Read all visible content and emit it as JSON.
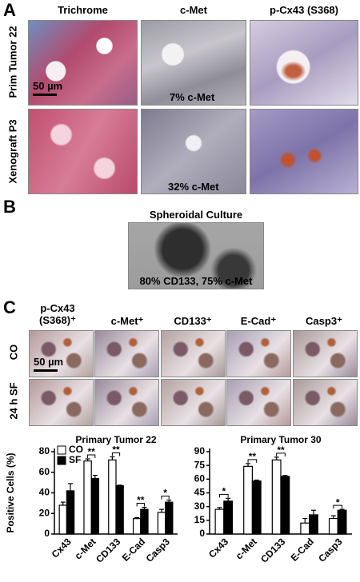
{
  "panels": {
    "A": {
      "label": "A",
      "columns": [
        "Trichrome",
        "c-Met",
        "p-Cx43 (S368)"
      ],
      "rows": [
        "Prim Tumor 22",
        "Xenograft P3"
      ],
      "scale_bar": "50 µm",
      "annotations": [
        "7% c-Met",
        "32% c-Met"
      ]
    },
    "B": {
      "label": "B",
      "title": "Spheroidal Culture",
      "annotation": "80% CD133, 75% c-Met"
    },
    "C": {
      "label": "C",
      "columns": [
        "p-Cx43 (S368)⁺",
        "c-Met⁺",
        "CD133⁺",
        "E-Cad⁺",
        "Casp3⁺"
      ],
      "rows": [
        "CO",
        "24 h SF"
      ],
      "scale_bar": "50 µm"
    }
  },
  "chart_data": [
    {
      "type": "bar",
      "title": "Primary Tumor  22",
      "ylabel": "Positive Cells (%)",
      "categories": [
        "Cx43",
        "c-Met",
        "CD133",
        "E-Cad",
        "Casp3"
      ],
      "series": [
        {
          "name": "CO",
          "color": "#ffffff",
          "values": [
            28,
            71,
            72,
            15,
            21
          ],
          "errors": [
            3,
            2,
            3,
            1,
            3
          ]
        },
        {
          "name": "SF",
          "color": "#000000",
          "values": [
            42,
            54,
            47,
            24,
            31
          ],
          "errors": [
            7,
            3,
            0.5,
            2,
            2
          ]
        }
      ],
      "significance": [
        null,
        "**",
        "**",
        "**",
        "*"
      ],
      "ylim": [
        0,
        80
      ],
      "yticks": [
        0,
        20,
        40,
        60,
        80
      ],
      "legend": "upper left"
    },
    {
      "type": "bar",
      "title": "Primary Tumor  30",
      "categories": [
        "Cx43",
        "c-Met",
        "CD133",
        "E-Cad",
        "Casp3"
      ],
      "series": [
        {
          "color": "#ffffff",
          "values": [
            27,
            74,
            81,
            12,
            17
          ],
          "errors": [
            2,
            3,
            3,
            5,
            3
          ]
        },
        {
          "color": "#000000",
          "values": [
            36,
            58,
            63,
            21,
            26
          ],
          "errors": [
            3,
            1,
            1,
            5,
            1
          ]
        }
      ],
      "significance": [
        "*",
        "**",
        "**",
        null,
        "*"
      ],
      "ylim": [
        0,
        90
      ],
      "yticks": [
        0,
        15,
        30,
        45,
        60,
        75,
        90
      ]
    }
  ]
}
